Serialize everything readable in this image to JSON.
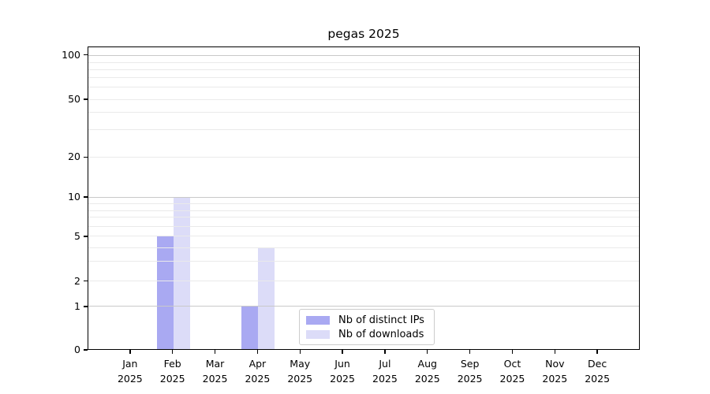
{
  "chart_data": {
    "type": "bar",
    "title": "pegas 2025",
    "categories": [
      "Jan",
      "Feb",
      "Mar",
      "Apr",
      "May",
      "Jun",
      "Jul",
      "Aug",
      "Sep",
      "Oct",
      "Nov",
      "Dec"
    ],
    "category_year": "2025",
    "series": [
      {
        "name": "Nb of distinct IPs",
        "color": "#a9a9f2",
        "values": [
          0,
          5,
          0,
          1,
          0,
          0,
          0,
          0,
          0,
          0,
          0,
          0
        ]
      },
      {
        "name": "Nb of downloads",
        "color": "#dcdcf8",
        "values": [
          0,
          10,
          0,
          4,
          0,
          0,
          0,
          0,
          0,
          0,
          0,
          0
        ]
      }
    ],
    "xlabel": "",
    "ylabel": "",
    "y_ticks": [
      0,
      1,
      2,
      5,
      10,
      20,
      50,
      100
    ],
    "y_gridline_values": [
      1,
      2,
      3,
      4,
      5,
      6,
      7,
      8,
      9,
      10,
      20,
      30,
      40,
      50,
      60,
      70,
      80,
      90,
      100
    ],
    "y_major_gridlines": [
      1,
      10,
      100
    ],
    "y_scale": "log-like with linear segment to 0",
    "ylim": [
      0,
      120
    ],
    "grid": true,
    "legend": {
      "position": "bottom-center-inside",
      "entries": [
        "Nb of distinct IPs",
        "Nb of downloads"
      ]
    },
    "colors": {
      "grid_major": "#c9c9c9",
      "grid_minor": "#eaeaea",
      "spine": "#000000",
      "text": "#000000",
      "background": "#ffffff"
    }
  }
}
